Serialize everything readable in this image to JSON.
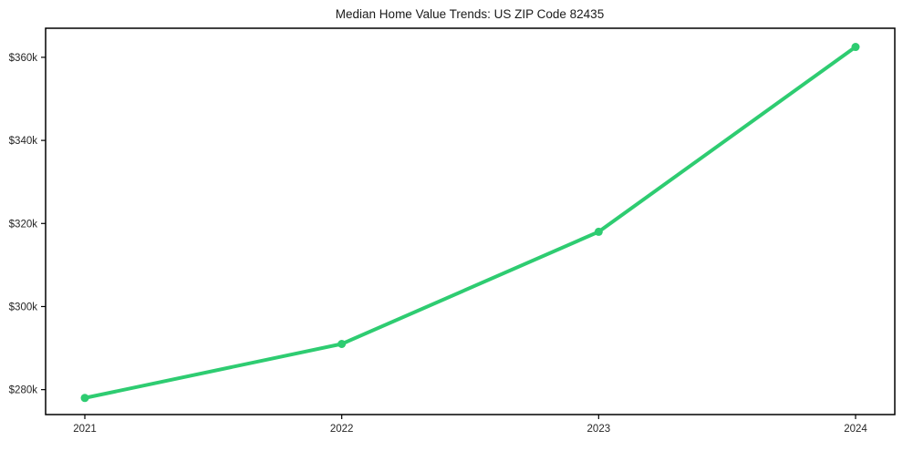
{
  "chart_data": {
    "type": "line",
    "title": "Median Home Value Trends: US ZIP Code 82435",
    "categories": [
      "2021",
      "2022",
      "2023",
      "2024"
    ],
    "series": [
      {
        "name": "Median Home Value",
        "values": [
          278000,
          291000,
          318000,
          362500
        ],
        "color": "#2ecc71"
      }
    ],
    "xlabel": "",
    "ylabel": "",
    "ylim": [
      274000,
      367000
    ],
    "yticks": [
      {
        "value": 280000,
        "label": "$280k"
      },
      {
        "value": 300000,
        "label": "$300k"
      },
      {
        "value": 320000,
        "label": "$320k"
      },
      {
        "value": 340000,
        "label": "$340k"
      },
      {
        "value": 360000,
        "label": "$360k"
      }
    ],
    "grid": false,
    "legend": "none",
    "line_width": 4,
    "marker_radius": 4.5,
    "axis_color": "#000000",
    "text_color": "#262626",
    "background": "#ffffff"
  }
}
